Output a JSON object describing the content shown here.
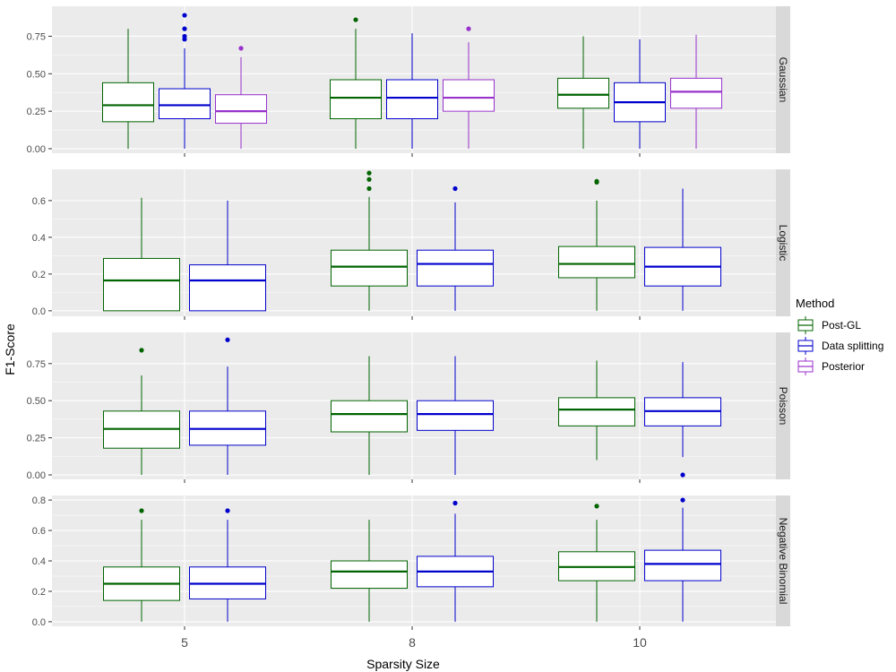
{
  "chart_data": {
    "type": "boxplot",
    "xlabel": "Sparsity Size",
    "ylabel": "F1-Score",
    "categories": [
      "5",
      "8",
      "10"
    ],
    "legend": {
      "title": "Method",
      "position": "right",
      "entries": [
        "Post-GL",
        "Data splitting",
        "Posterior"
      ]
    },
    "colors": {
      "Post-GL": "#006400",
      "Data splitting": "#0000CD",
      "Posterior": "#9932CC",
      "panel_bg": "#EBEBEB",
      "strip_bg": "#D9D9D9",
      "grid": "#FFFFFF"
    },
    "facets": [
      {
        "name": "Gaussian",
        "ylim": [
          -0.03,
          0.95
        ],
        "yticks": [
          0.0,
          0.25,
          0.5,
          0.75
        ],
        "ytick_labels": [
          "0.00",
          "0.25",
          "0.50",
          "0.75"
        ],
        "series": [
          {
            "method": "Post-GL",
            "boxes": [
              {
                "x": "5",
                "whisker_low": 0.0,
                "q1": 0.18,
                "median": 0.29,
                "q3": 0.44,
                "whisker_high": 0.8,
                "outliers": []
              },
              {
                "x": "8",
                "whisker_low": 0.0,
                "q1": 0.2,
                "median": 0.34,
                "q3": 0.46,
                "whisker_high": 0.8,
                "outliers": [
                  0.86
                ]
              },
              {
                "x": "10",
                "whisker_low": 0.0,
                "q1": 0.27,
                "median": 0.36,
                "q3": 0.47,
                "whisker_high": 0.75,
                "outliers": []
              }
            ]
          },
          {
            "method": "Data splitting",
            "boxes": [
              {
                "x": "5",
                "whisker_low": 0.0,
                "q1": 0.2,
                "median": 0.29,
                "q3": 0.4,
                "whisker_high": 0.67,
                "outliers": [
                  0.73,
                  0.75,
                  0.8,
                  0.89
                ]
              },
              {
                "x": "8",
                "whisker_low": 0.0,
                "q1": 0.2,
                "median": 0.34,
                "q3": 0.46,
                "whisker_high": 0.77,
                "outliers": []
              },
              {
                "x": "10",
                "whisker_low": 0.0,
                "q1": 0.18,
                "median": 0.31,
                "q3": 0.44,
                "whisker_high": 0.73,
                "outliers": []
              }
            ]
          },
          {
            "method": "Posterior",
            "boxes": [
              {
                "x": "5",
                "whisker_low": 0.0,
                "q1": 0.17,
                "median": 0.25,
                "q3": 0.36,
                "whisker_high": 0.61,
                "outliers": [
                  0.67
                ]
              },
              {
                "x": "8",
                "whisker_low": 0.0,
                "q1": 0.25,
                "median": 0.34,
                "q3": 0.46,
                "whisker_high": 0.71,
                "outliers": [
                  0.8
                ]
              },
              {
                "x": "10",
                "whisker_low": 0.0,
                "q1": 0.27,
                "median": 0.38,
                "q3": 0.47,
                "whisker_high": 0.76,
                "outliers": []
              }
            ]
          }
        ]
      },
      {
        "name": "Logistic",
        "ylim": [
          -0.03,
          0.77
        ],
        "yticks": [
          0.0,
          0.2,
          0.4,
          0.6
        ],
        "ytick_labels": [
          "0.0",
          "0.2",
          "0.4",
          "0.6"
        ],
        "series": [
          {
            "method": "Post-GL",
            "boxes": [
              {
                "x": "5",
                "whisker_low": 0.0,
                "q1": 0.0,
                "median": 0.165,
                "q3": 0.285,
                "whisker_high": 0.615,
                "outliers": []
              },
              {
                "x": "8",
                "whisker_low": 0.0,
                "q1": 0.135,
                "median": 0.24,
                "q3": 0.33,
                "whisker_high": 0.62,
                "outliers": [
                  0.665,
                  0.715,
                  0.75
                ]
              },
              {
                "x": "10",
                "whisker_low": 0.0,
                "q1": 0.18,
                "median": 0.255,
                "q3": 0.35,
                "whisker_high": 0.6,
                "outliers": [
                  0.7,
                  0.705
                ]
              }
            ]
          },
          {
            "method": "Data splitting",
            "boxes": [
              {
                "x": "5",
                "whisker_low": 0.0,
                "q1": 0.0,
                "median": 0.165,
                "q3": 0.25,
                "whisker_high": 0.6,
                "outliers": []
              },
              {
                "x": "8",
                "whisker_low": 0.0,
                "q1": 0.135,
                "median": 0.255,
                "q3": 0.33,
                "whisker_high": 0.59,
                "outliers": [
                  0.665
                ]
              },
              {
                "x": "10",
                "whisker_low": 0.0,
                "q1": 0.135,
                "median": 0.24,
                "q3": 0.345,
                "whisker_high": 0.665,
                "outliers": []
              }
            ]
          }
        ]
      },
      {
        "name": "Poisson",
        "ylim": [
          -0.03,
          0.96
        ],
        "yticks": [
          0.0,
          0.25,
          0.5,
          0.75
        ],
        "ytick_labels": [
          "0.00",
          "0.25",
          "0.50",
          "0.75"
        ],
        "series": [
          {
            "method": "Post-GL",
            "boxes": [
              {
                "x": "5",
                "whisker_low": 0.0,
                "q1": 0.18,
                "median": 0.31,
                "q3": 0.43,
                "whisker_high": 0.67,
                "outliers": [
                  0.84
                ]
              },
              {
                "x": "8",
                "whisker_low": 0.0,
                "q1": 0.29,
                "median": 0.41,
                "q3": 0.5,
                "whisker_high": 0.8,
                "outliers": []
              },
              {
                "x": "10",
                "whisker_low": 0.1,
                "q1": 0.33,
                "median": 0.44,
                "q3": 0.52,
                "whisker_high": 0.77,
                "outliers": []
              }
            ]
          },
          {
            "method": "Data splitting",
            "boxes": [
              {
                "x": "5",
                "whisker_low": 0.0,
                "q1": 0.2,
                "median": 0.31,
                "q3": 0.43,
                "whisker_high": 0.73,
                "outliers": [
                  0.91
                ]
              },
              {
                "x": "8",
                "whisker_low": 0.0,
                "q1": 0.3,
                "median": 0.41,
                "q3": 0.5,
                "whisker_high": 0.8,
                "outliers": []
              },
              {
                "x": "10",
                "whisker_low": 0.12,
                "q1": 0.33,
                "median": 0.43,
                "q3": 0.52,
                "whisker_high": 0.76,
                "outliers": [
                  0.0
                ]
              }
            ]
          }
        ]
      },
      {
        "name": "Negative Binomial",
        "ylim": [
          -0.03,
          0.83
        ],
        "yticks": [
          0.0,
          0.2,
          0.4,
          0.6,
          0.8
        ],
        "ytick_labels": [
          "0.0",
          "0.2",
          "0.4",
          "0.6",
          "0.8"
        ],
        "series": [
          {
            "method": "Post-GL",
            "boxes": [
              {
                "x": "5",
                "whisker_low": 0.0,
                "q1": 0.14,
                "median": 0.25,
                "q3": 0.36,
                "whisker_high": 0.67,
                "outliers": [
                  0.73
                ]
              },
              {
                "x": "8",
                "whisker_low": 0.0,
                "q1": 0.22,
                "median": 0.33,
                "q3": 0.4,
                "whisker_high": 0.67,
                "outliers": []
              },
              {
                "x": "10",
                "whisker_low": 0.0,
                "q1": 0.27,
                "median": 0.36,
                "q3": 0.46,
                "whisker_high": 0.67,
                "outliers": [
                  0.76
                ]
              }
            ]
          },
          {
            "method": "Data splitting",
            "boxes": [
              {
                "x": "5",
                "whisker_low": 0.0,
                "q1": 0.15,
                "median": 0.25,
                "q3": 0.36,
                "whisker_high": 0.67,
                "outliers": [
                  0.73
                ]
              },
              {
                "x": "8",
                "whisker_low": 0.0,
                "q1": 0.23,
                "median": 0.33,
                "q3": 0.43,
                "whisker_high": 0.71,
                "outliers": [
                  0.78
                ]
              },
              {
                "x": "10",
                "whisker_low": 0.0,
                "q1": 0.27,
                "median": 0.38,
                "q3": 0.47,
                "whisker_high": 0.75,
                "outliers": [
                  0.8
                ]
              }
            ]
          }
        ]
      }
    ]
  }
}
